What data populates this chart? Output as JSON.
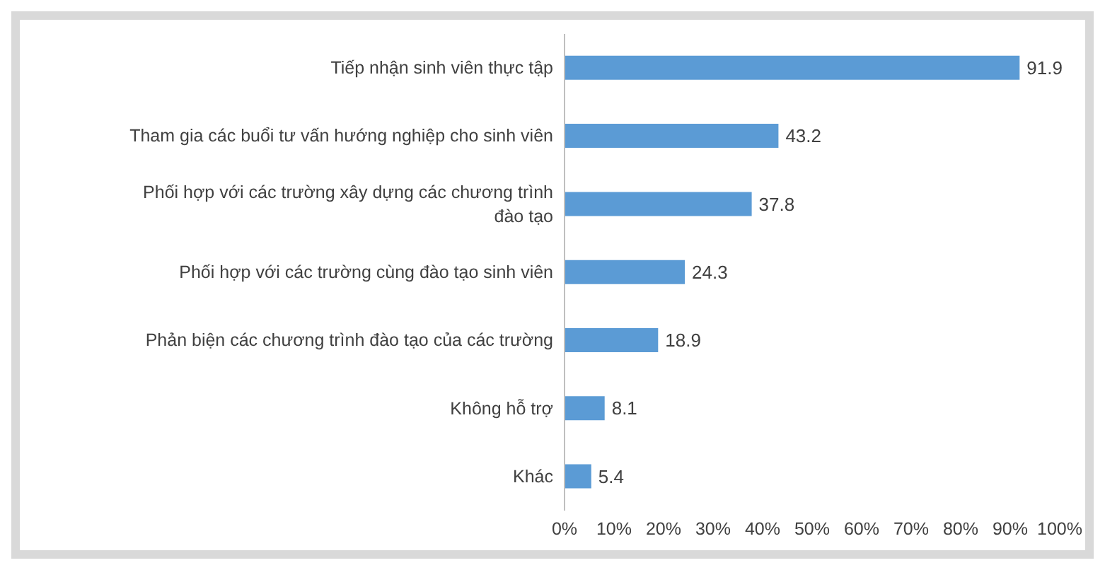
{
  "chart_data": {
    "type": "bar",
    "orientation": "horizontal",
    "categories": [
      "Tiếp nhận sinh viên thực tập",
      "Tham gia các buổi tư vấn hướng nghiệp cho sinh viên",
      "Phối hợp với các trường xây dựng các chương trình đào tạo",
      "Phối hợp với các trường cùng đào tạo sinh viên",
      "Phản biện các chương trình đào tạo của các trường",
      "Không hỗ trợ",
      "Khác"
    ],
    "values": [
      91.9,
      43.2,
      37.8,
      24.3,
      18.9,
      8.1,
      5.4
    ],
    "color": "#5b9bd5",
    "xlim": [
      0,
      100
    ],
    "xticks": [
      {
        "value": 0,
        "label": "0%"
      },
      {
        "value": 10,
        "label": "10%"
      },
      {
        "value": 20,
        "label": "20%"
      },
      {
        "value": 30,
        "label": "30%"
      },
      {
        "value": 40,
        "label": "40%"
      },
      {
        "value": 50,
        "label": "50%"
      },
      {
        "value": 60,
        "label": "60%"
      },
      {
        "value": 70,
        "label": "70%"
      },
      {
        "value": 80,
        "label": "80%"
      },
      {
        "value": 90,
        "label": "90%"
      },
      {
        "value": 100,
        "label": "100%"
      }
    ],
    "data_labels": true,
    "grid": false
  }
}
